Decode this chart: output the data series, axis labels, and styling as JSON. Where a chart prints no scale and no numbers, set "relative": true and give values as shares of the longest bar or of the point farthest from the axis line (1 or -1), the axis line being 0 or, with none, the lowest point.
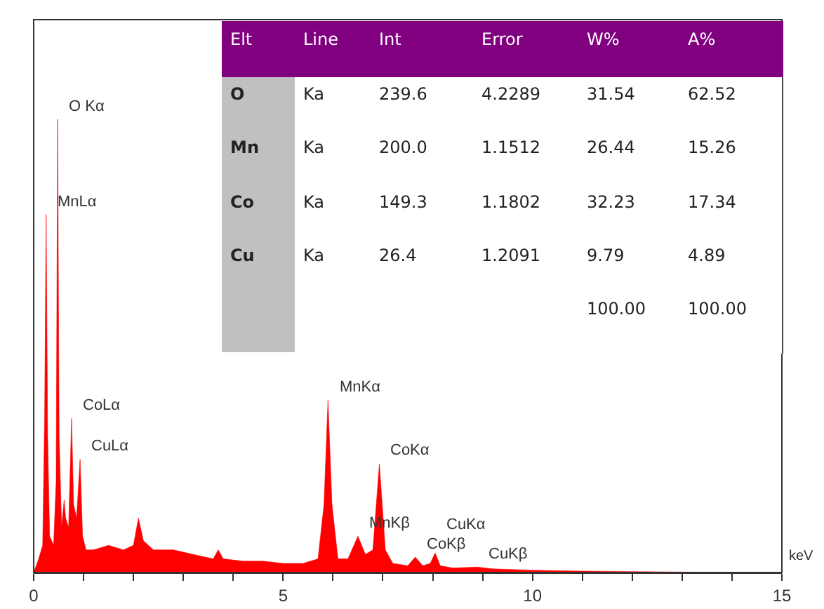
{
  "chart_data": {
    "type": "area",
    "relative": true,
    "xlabel": "keV",
    "color": "#ff0000",
    "xlim": [
      0,
      15
    ],
    "xticks": [
      0,
      {
        "value": 1,
        "label": null
      },
      {
        "value": 2,
        "label": null
      },
      {
        "value": 3,
        "label": null
      },
      {
        "value": 4,
        "label": null
      },
      5,
      {
        "value": 6,
        "label": null
      },
      {
        "value": 7,
        "label": null
      },
      {
        "value": 8,
        "label": null
      },
      {
        "value": 9,
        "label": null
      },
      10,
      {
        "value": 11,
        "label": null
      },
      {
        "value": 12,
        "label": null
      },
      {
        "value": 13,
        "label": null
      },
      {
        "value": 14,
        "label": null
      },
      15
    ],
    "x": [
      0,
      0.1,
      0.18,
      0.22,
      0.25,
      0.28,
      0.32,
      0.4,
      0.45,
      0.48,
      0.51,
      0.56,
      0.61,
      0.64,
      0.7,
      0.76,
      0.8,
      0.86,
      0.93,
      0.98,
      1.05,
      1.2,
      1.5,
      1.8,
      2.0,
      2.1,
      2.2,
      2.4,
      2.8,
      3.2,
      3.6,
      3.7,
      3.8,
      4.2,
      4.6,
      5.0,
      5.4,
      5.7,
      5.82,
      5.9,
      5.98,
      6.1,
      6.3,
      6.5,
      6.65,
      6.8,
      6.93,
      7.05,
      7.2,
      7.5,
      7.65,
      7.8,
      7.95,
      8.05,
      8.15,
      8.4,
      8.9,
      9.2,
      10,
      11,
      12,
      13,
      15
    ],
    "values": [
      0,
      0.03,
      0.06,
      0.35,
      0.79,
      0.3,
      0.08,
      0.06,
      0.2,
      1.0,
      0.3,
      0.1,
      0.16,
      0.12,
      0.1,
      0.34,
      0.15,
      0.12,
      0.25,
      0.08,
      0.05,
      0.05,
      0.06,
      0.05,
      0.06,
      0.12,
      0.07,
      0.05,
      0.05,
      0.04,
      0.03,
      0.05,
      0.03,
      0.025,
      0.025,
      0.02,
      0.02,
      0.03,
      0.15,
      0.38,
      0.15,
      0.03,
      0.03,
      0.08,
      0.04,
      0.05,
      0.24,
      0.05,
      0.02,
      0.015,
      0.034,
      0.015,
      0.02,
      0.043,
      0.015,
      0.01,
      0.012,
      0.008,
      0.005,
      0.003,
      0.002,
      0.001,
      0
    ],
    "legend": false,
    "annotations": [
      {
        "text": "O Kα",
        "x": 0.48,
        "y": 1.0
      },
      {
        "text": "CoLα",
        "x": 0.76,
        "y": 0.34
      },
      {
        "text": "MnLα",
        "x": 0.25,
        "y": 0.79
      },
      {
        "text": "CuLα",
        "x": 0.93,
        "y": 0.25
      },
      {
        "text": "MnKα",
        "x": 5.9,
        "y": 0.38
      },
      {
        "text": "CoKα",
        "x": 6.93,
        "y": 0.24
      },
      {
        "text": "MnKβ",
        "x": 6.5,
        "y": 0.08
      },
      {
        "text": "CoKβ",
        "x": 7.65,
        "y": 0.034
      },
      {
        "text": "CuKα",
        "x": 8.05,
        "y": 0.043
      },
      {
        "text": "CuKβ",
        "x": 8.9,
        "y": 0.012
      },
      "Elt",
      "Line",
      "Int",
      "Error",
      "W%",
      "A%",
      "O",
      "Ka",
      "239.6",
      "4.2289",
      "31.54",
      "62.52",
      "Mn",
      "Ka",
      "200.0",
      "1.1512",
      "26.44",
      "15.26",
      "Co",
      "Ka",
      "149.3",
      "1.1802",
      "32.23",
      "17.34",
      "Cu",
      "Ka",
      "26.4",
      "1.2091",
      "9.79",
      "4.89",
      "100.00",
      "100.00"
    ]
  }
}
